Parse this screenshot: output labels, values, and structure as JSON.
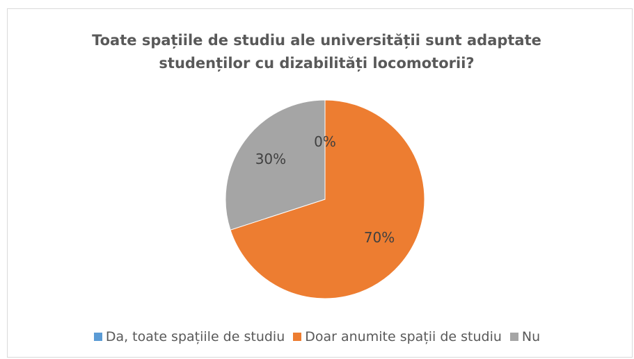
{
  "chart_data": {
    "type": "pie",
    "title": "Toate spațiile de studiu ale universității sunt adaptate studenților cu dizabilități locomotorii?",
    "categories": [
      "Da, toate spațiile de studiu",
      "Doar anumite spații de studiu",
      "Nu"
    ],
    "values": [
      0,
      70,
      30
    ],
    "value_labels": [
      "0%",
      "70%",
      "30%"
    ],
    "colors": [
      "#5b9bd5",
      "#ed7d31",
      "#a5a5a5"
    ],
    "legend": "bottom"
  }
}
